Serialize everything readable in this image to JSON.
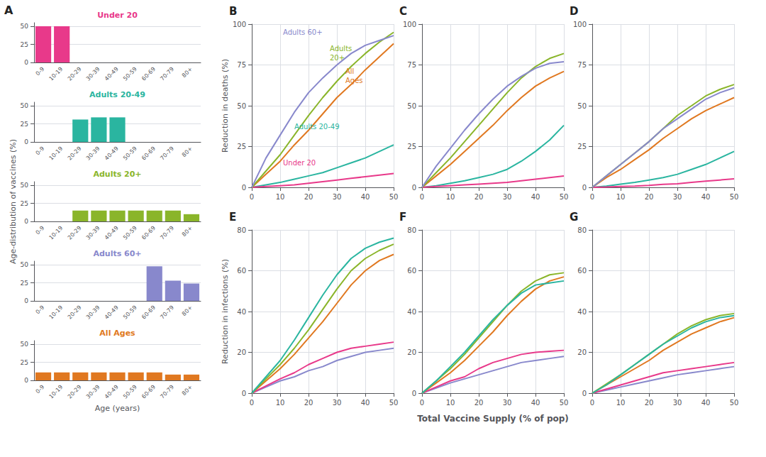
{
  "chart_data": [
    {
      "type": "bar",
      "title": "Under 20",
      "categories": [
        "0-9",
        "10-19",
        "20-29",
        "30-39",
        "40-49",
        "50-59",
        "60-69",
        "70-79",
        "80+"
      ],
      "values": [
        50,
        50,
        0,
        0,
        0,
        0,
        0,
        0,
        0
      ],
      "color": "#e8398a",
      "ylim": [
        0,
        55
      ],
      "yticks": [
        0,
        25,
        50
      ],
      "grid": "y",
      "annotations": [
        {
          "text": "A"
        }
      ]
    },
    {
      "type": "bar",
      "title": "Adults 20-49",
      "categories": [
        "0-9",
        "10-19",
        "20-29",
        "30-39",
        "40-49",
        "50-59",
        "60-69",
        "70-79",
        "80+"
      ],
      "values": [
        0,
        0,
        31,
        34,
        34,
        0,
        0,
        0,
        0
      ],
      "color": "#2ab5a0",
      "ylim": [
        0,
        55
      ],
      "yticks": [
        0,
        25,
        50
      ],
      "grid": "y"
    },
    {
      "type": "bar",
      "title": "Adults 20+",
      "categories": [
        "0-9",
        "10-19",
        "20-29",
        "30-39",
        "40-49",
        "50-59",
        "60-69",
        "70-79",
        "80+"
      ],
      "values": [
        0,
        0,
        15,
        15,
        15,
        15,
        15,
        15,
        10
      ],
      "color": "#8ab52a",
      "ylim": [
        0,
        55
      ],
      "yticks": [
        0,
        25,
        50
      ],
      "grid": "y",
      "ylabel": "Age-distribution of vaccines (%)"
    },
    {
      "type": "bar",
      "title": "Adults 60+",
      "categories": [
        "0-9",
        "10-19",
        "20-29",
        "30-39",
        "40-49",
        "50-59",
        "60-69",
        "70-79",
        "80+"
      ],
      "values": [
        0,
        0,
        0,
        0,
        0,
        0,
        48,
        28,
        24
      ],
      "color": "#8888cc",
      "ylim": [
        0,
        55
      ],
      "yticks": [
        0,
        25,
        50
      ],
      "grid": "y"
    },
    {
      "type": "bar",
      "title": "All Ages",
      "categories": [
        "0-9",
        "10-19",
        "20-29",
        "30-39",
        "40-49",
        "50-59",
        "60-69",
        "70-79",
        "80+"
      ],
      "values": [
        11,
        11,
        11,
        11,
        11,
        11,
        11,
        8,
        8
      ],
      "color": "#e07820",
      "ylim": [
        0,
        55
      ],
      "yticks": [
        0,
        25,
        50
      ],
      "grid": "y",
      "xlabel": "Age (years)"
    },
    {
      "type": "line",
      "title": "B",
      "x": [
        0,
        5,
        10,
        15,
        20,
        25,
        30,
        35,
        40,
        45,
        50
      ],
      "series": [
        {
          "color": "#2ab5a0",
          "values": [
            0,
            1.5,
            3,
            5,
            7,
            9,
            12,
            15,
            18,
            22,
            26
          ]
        },
        {
          "color": "#e8398a",
          "values": [
            0,
            0.5,
            1,
            1.5,
            2.5,
            3.5,
            4.5,
            5.5,
            6.5,
            7.5,
            8.5
          ]
        },
        {
          "color": "#e07820",
          "values": [
            0,
            8,
            16,
            26,
            35,
            45,
            55,
            63,
            72,
            80,
            88
          ]
        },
        {
          "color": "#8ab52a",
          "values": [
            0,
            10,
            20,
            32,
            44,
            55,
            65,
            74,
            82,
            89,
            95
          ]
        },
        {
          "color": "#8888cc",
          "values": [
            0,
            18,
            32,
            46,
            58,
            67,
            75,
            82,
            87,
            90,
            93
          ]
        }
      ],
      "xlim": [
        0,
        50
      ],
      "xticks": [
        0,
        10,
        20,
        30,
        40,
        50
      ],
      "ylim": [
        0,
        100
      ],
      "yticks": [
        0,
        25,
        50,
        75,
        100
      ],
      "grid": true,
      "ylabel": "Reduction in deaths (%)",
      "annotations": [
        {
          "text": "Adults 60+",
          "color": "#8888cc"
        },
        {
          "text": "Adults\n20+",
          "color": "#8ab52a"
        },
        {
          "text": "All\nAges",
          "color": "#e07820"
        },
        {
          "text": "Adults 20-49",
          "color": "#2ab5a0"
        },
        {
          "text": "Under 20",
          "color": "#e8398a"
        }
      ]
    },
    {
      "type": "line",
      "title": "C",
      "x": [
        0,
        5,
        10,
        15,
        20,
        25,
        30,
        35,
        40,
        45,
        50
      ],
      "series": [
        {
          "color": "#2ab5a0",
          "values": [
            0,
            1,
            2.5,
            4,
            6,
            8,
            11,
            16,
            22,
            29,
            38
          ]
        },
        {
          "color": "#e8398a",
          "values": [
            0,
            0.5,
            1,
            1.5,
            2,
            2.5,
            3,
            4,
            5,
            6,
            7
          ]
        },
        {
          "color": "#e07820",
          "values": [
            0,
            7,
            14,
            22,
            30,
            38,
            47,
            55,
            62,
            67,
            71
          ]
        },
        {
          "color": "#8ab52a",
          "values": [
            0,
            9,
            18,
            28,
            38,
            48,
            58,
            67,
            74,
            79,
            82
          ]
        },
        {
          "color": "#8888cc",
          "values": [
            0,
            13,
            24,
            35,
            45,
            54,
            62,
            68,
            73,
            76,
            77
          ]
        }
      ],
      "xlim": [
        0,
        50
      ],
      "xticks": [
        0,
        10,
        20,
        30,
        40,
        50
      ],
      "ylim": [
        0,
        100
      ],
      "yticks": [
        0,
        25,
        50,
        75,
        100
      ],
      "grid": true
    },
    {
      "type": "line",
      "title": "D",
      "x": [
        0,
        5,
        10,
        15,
        20,
        25,
        30,
        35,
        40,
        45,
        50
      ],
      "series": [
        {
          "color": "#2ab5a0",
          "values": [
            0,
            0.8,
            2,
            3,
            4.5,
            6,
            8,
            11,
            14,
            18,
            22
          ]
        },
        {
          "color": "#e8398a",
          "values": [
            0,
            0.2,
            0.5,
            0.8,
            1.2,
            1.8,
            2.2,
            3,
            3.8,
            4.5,
            5.2
          ]
        },
        {
          "color": "#e07820",
          "values": [
            0,
            6,
            11,
            17,
            23,
            30,
            36,
            42,
            47,
            51,
            55
          ]
        },
        {
          "color": "#8ab52a",
          "values": [
            0,
            7,
            14,
            21,
            28,
            36,
            44,
            50,
            56,
            60,
            63
          ]
        },
        {
          "color": "#8888cc",
          "values": [
            0,
            7,
            14,
            21,
            28,
            36,
            42,
            48,
            54,
            58,
            61
          ]
        }
      ],
      "xlim": [
        0,
        50
      ],
      "xticks": [
        0,
        10,
        20,
        30,
        40,
        50
      ],
      "ylim": [
        0,
        100
      ],
      "yticks": [
        0,
        25,
        50,
        75,
        100
      ],
      "grid": true
    },
    {
      "type": "line",
      "title": "E",
      "x": [
        0,
        5,
        10,
        15,
        20,
        25,
        30,
        35,
        40,
        45,
        50
      ],
      "series": [
        {
          "color": "#8888cc",
          "values": [
            0,
            3,
            6,
            8,
            11,
            13,
            16,
            18,
            20,
            21,
            22
          ]
        },
        {
          "color": "#e8398a",
          "values": [
            0,
            3.5,
            7,
            10,
            14,
            17,
            20,
            22,
            23,
            24,
            25
          ]
        },
        {
          "color": "#e07820",
          "values": [
            0,
            6,
            12,
            19,
            27,
            35,
            44,
            53,
            60,
            65,
            68
          ]
        },
        {
          "color": "#8ab52a",
          "values": [
            0,
            7,
            14,
            22,
            31,
            41,
            51,
            60,
            66,
            70,
            73
          ]
        },
        {
          "color": "#2ab5a0",
          "values": [
            0,
            8,
            16,
            26,
            37,
            48,
            58,
            66,
            71,
            74,
            76
          ]
        }
      ],
      "xlim": [
        0,
        50
      ],
      "xticks": [
        0,
        10,
        20,
        30,
        40,
        50
      ],
      "ylim": [
        0,
        80
      ],
      "yticks": [
        0,
        20,
        40,
        60,
        80
      ],
      "grid": true,
      "ylabel": "Reduction in infections (%)"
    },
    {
      "type": "line",
      "title": "F",
      "x": [
        0,
        5,
        10,
        15,
        20,
        25,
        30,
        35,
        40,
        45,
        50
      ],
      "series": [
        {
          "color": "#8888cc",
          "values": [
            0,
            2.5,
            5,
            7,
            9,
            11,
            13,
            15,
            16,
            17,
            18
          ]
        },
        {
          "color": "#e8398a",
          "values": [
            0,
            3,
            6,
            8,
            12,
            15,
            17,
            19,
            20,
            20.5,
            21
          ]
        },
        {
          "color": "#e07820",
          "values": [
            0,
            5,
            10,
            16,
            23,
            30,
            38,
            45,
            51,
            55,
            57
          ]
        },
        {
          "color": "#8ab52a",
          "values": [
            0,
            6,
            12,
            19,
            27,
            35,
            43,
            50,
            55,
            58,
            59
          ]
        },
        {
          "color": "#2ab5a0",
          "values": [
            0,
            6,
            13,
            20,
            28,
            36,
            43,
            49,
            53,
            54,
            55
          ]
        }
      ],
      "xlim": [
        0,
        50
      ],
      "xticks": [
        0,
        10,
        20,
        30,
        40,
        50
      ],
      "ylim": [
        0,
        80
      ],
      "yticks": [
        0,
        20,
        40,
        60,
        80
      ],
      "grid": true,
      "xlabel": "Total Vaccine Supply (% of pop)"
    },
    {
      "type": "line",
      "title": "G",
      "x": [
        0,
        5,
        10,
        15,
        20,
        25,
        30,
        35,
        40,
        45,
        50
      ],
      "series": [
        {
          "color": "#8888cc",
          "values": [
            0,
            1.5,
            3,
            4.5,
            6,
            7.5,
            9,
            10,
            11,
            12,
            13
          ]
        },
        {
          "color": "#e8398a",
          "values": [
            0,
            2,
            4,
            6,
            8,
            10,
            11,
            12,
            13,
            14,
            15
          ]
        },
        {
          "color": "#e07820",
          "values": [
            0,
            4,
            8,
            12,
            16,
            21,
            25,
            29,
            32,
            35,
            37
          ]
        },
        {
          "color": "#8ab52a",
          "values": [
            0,
            4.5,
            9,
            14,
            19,
            24,
            29,
            33,
            36,
            38,
            39
          ]
        },
        {
          "color": "#2ab5a0",
          "values": [
            0,
            4,
            9,
            14,
            19,
            24,
            28,
            32,
            35,
            37,
            38
          ]
        }
      ],
      "xlim": [
        0,
        50
      ],
      "xticks": [
        0,
        10,
        20,
        30,
        40,
        50
      ],
      "ylim": [
        0,
        80
      ],
      "yticks": [
        0,
        20,
        40,
        60,
        80
      ],
      "grid": true
    }
  ]
}
